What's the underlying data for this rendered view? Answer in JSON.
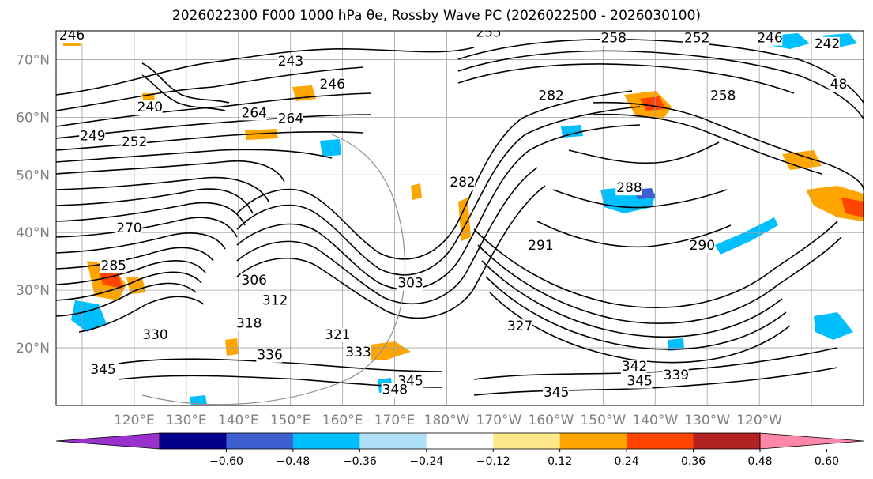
{
  "title": "2026022300 F000 1000 hPa θe, Rossby Wave PC (2026022500 - 2026030100)",
  "lat_labels": [
    "70°N",
    "60°N",
    "50°N",
    "40°N",
    "30°N",
    "20°N"
  ],
  "lat_values": [
    70,
    60,
    50,
    40,
    30,
    20
  ],
  "lon_labels": [
    "120°E",
    "130°E",
    "140°E",
    "150°E",
    "160°E",
    "170°E",
    "180°W",
    "170°W",
    "160°W",
    "150°W",
    "140°W",
    "130°W",
    "120°W"
  ],
  "lon_values": [
    120,
    130,
    140,
    150,
    160,
    170,
    180,
    190,
    200,
    210,
    220,
    230,
    240
  ],
  "colorbar": {
    "tick_labels": [
      "−0.60",
      "−0.48",
      "−0.36",
      "−0.24",
      "−0.12",
      "0.12",
      "0.24",
      "0.36",
      "0.48",
      "0.60"
    ],
    "colors": [
      "#9932cc",
      "#00008b",
      "#3d5fcf",
      "#00bfff",
      "#b0e0f8",
      "#ffffff",
      "#ffe88a",
      "#ffa500",
      "#ff4500",
      "#b22222",
      "#ff88aa"
    ]
  },
  "contour_labels": [
    {
      "text": "246",
      "lon": 108,
      "lat": 73.5
    },
    {
      "text": "243",
      "lon": 150,
      "lat": 69
    },
    {
      "text": "246",
      "lon": 158,
      "lat": 65
    },
    {
      "text": "240",
      "lon": 123,
      "lat": 61
    },
    {
      "text": "264",
      "lon": 143,
      "lat": 60
    },
    {
      "text": "264",
      "lon": 150,
      "lat": 59
    },
    {
      "text": "249",
      "lon": 112,
      "lat": 56
    },
    {
      "text": "252",
      "lon": 120,
      "lat": 55
    },
    {
      "text": "255",
      "lon": 188,
      "lat": 74
    },
    {
      "text": "258",
      "lon": 212,
      "lat": 73
    },
    {
      "text": "252",
      "lon": 228,
      "lat": 73
    },
    {
      "text": "246",
      "lon": 242,
      "lat": 73
    },
    {
      "text": "242",
      "lon": 253,
      "lat": 72
    },
    {
      "text": "48",
      "lon": 256,
      "lat": 65
    },
    {
      "text": "258",
      "lon": 233,
      "lat": 63
    },
    {
      "text": "282",
      "lon": 200,
      "lat": 63
    },
    {
      "text": "282",
      "lon": 183,
      "lat": 48
    },
    {
      "text": "288",
      "lon": 215,
      "lat": 47
    },
    {
      "text": "270",
      "lon": 119,
      "lat": 40
    },
    {
      "text": "285",
      "lon": 116,
      "lat": 33.5
    },
    {
      "text": "306",
      "lon": 143,
      "lat": 31
    },
    {
      "text": "312",
      "lon": 147,
      "lat": 27.5
    },
    {
      "text": "303",
      "lon": 173,
      "lat": 30.5
    },
    {
      "text": "291",
      "lon": 198,
      "lat": 37
    },
    {
      "text": "290",
      "lon": 229,
      "lat": 37
    },
    {
      "text": "318",
      "lon": 142,
      "lat": 23.5
    },
    {
      "text": "321",
      "lon": 159,
      "lat": 21.5
    },
    {
      "text": "330",
      "lon": 124,
      "lat": 21.5
    },
    {
      "text": "327",
      "lon": 194,
      "lat": 23
    },
    {
      "text": "336",
      "lon": 146,
      "lat": 18
    },
    {
      "text": "333",
      "lon": 163,
      "lat": 18.5
    },
    {
      "text": "345",
      "lon": 114,
      "lat": 15.5
    },
    {
      "text": "345",
      "lon": 173,
      "lat": 13.5
    },
    {
      "text": "348",
      "lon": 170,
      "lat": 12
    },
    {
      "text": "342",
      "lon": 216,
      "lat": 16
    },
    {
      "text": "345",
      "lon": 217,
      "lat": 13.5
    },
    {
      "text": "339",
      "lon": 224,
      "lat": 14.5
    },
    {
      "text": "345",
      "lon": 201,
      "lat": 11.5
    }
  ]
}
